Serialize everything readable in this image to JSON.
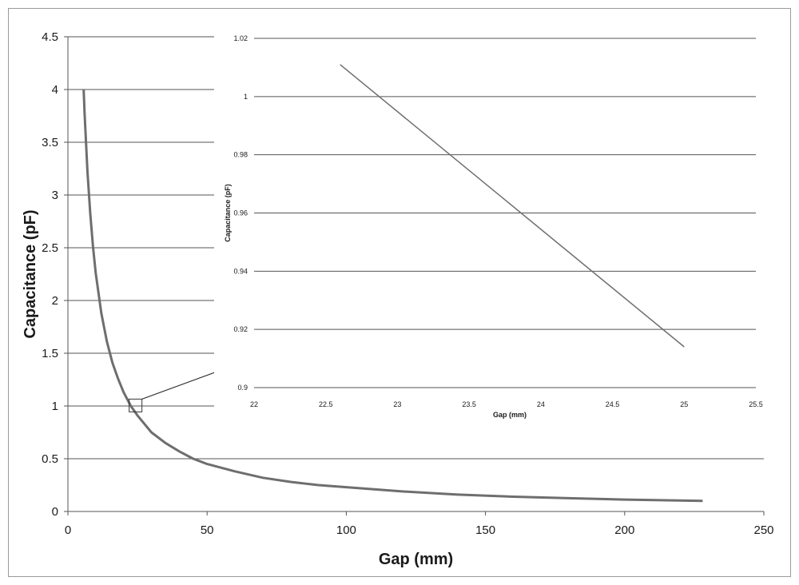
{
  "chart_data": [
    {
      "type": "line",
      "xlabel": "Gap (mm)",
      "ylabel": "Capacitance (pF)",
      "xlim": [
        0,
        250
      ],
      "ylim": [
        0,
        4.5
      ],
      "x_ticks": [
        "0",
        "50",
        "100",
        "150",
        "200",
        "250"
      ],
      "y_ticks": [
        "0",
        "0.5",
        "1",
        "1.5",
        "2",
        "2.5",
        "3",
        "3.5",
        "4",
        "4.5"
      ],
      "grid": "horizontal",
      "series": [
        {
          "x": [
            5.65,
            6,
            7,
            8,
            9,
            10,
            12,
            14,
            16,
            18,
            20,
            22.6,
            25,
            30,
            35,
            40,
            45,
            50,
            60,
            70,
            80,
            90,
            100,
            120,
            140,
            160,
            180,
            200,
            228
          ],
          "y": [
            4.0,
            3.77,
            3.23,
            2.83,
            2.51,
            2.26,
            1.88,
            1.61,
            1.41,
            1.26,
            1.13,
            1.0,
            0.91,
            0.75,
            0.65,
            0.57,
            0.5,
            0.45,
            0.38,
            0.32,
            0.28,
            0.25,
            0.23,
            0.19,
            0.16,
            0.14,
            0.126,
            0.113,
            0.1
          ]
        }
      ],
      "zoom_box": {
        "x": [
          22,
          25.5
        ],
        "y": [
          0.9,
          1.02
        ]
      }
    },
    {
      "type": "line",
      "xlabel": "Gap (mm)",
      "ylabel": "Capacitance (pF)",
      "xlim": [
        22,
        25.5
      ],
      "ylim": [
        0.9,
        1.02
      ],
      "x_ticks": [
        "22",
        "22.5",
        "23",
        "23.5",
        "24",
        "24.5",
        "25",
        "25.5"
      ],
      "y_ticks": [
        "0.9",
        "0.92",
        "0.94",
        "0.96",
        "0.98",
        "1",
        "1.02"
      ],
      "grid": "horizontal",
      "series": [
        {
          "x": [
            22.6,
            25
          ],
          "y": [
            1.011,
            0.914
          ]
        }
      ]
    }
  ]
}
